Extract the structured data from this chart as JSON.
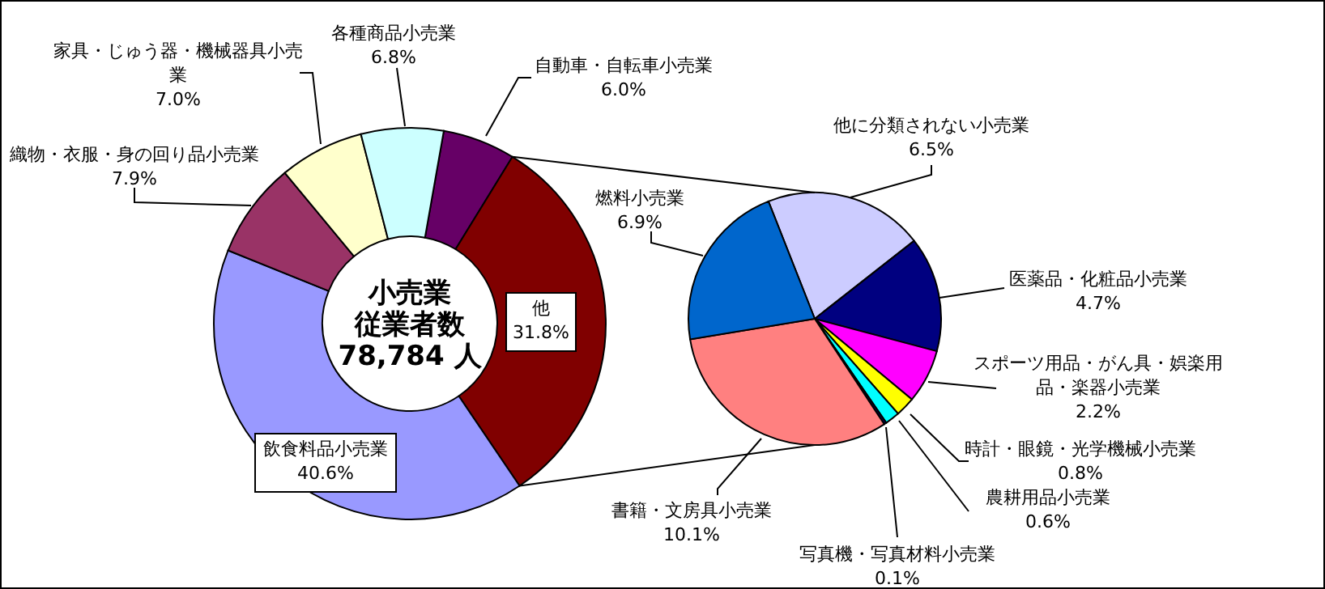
{
  "chart_data": [
    {
      "type": "donut",
      "title": "小売業",
      "subtitle": "従業者数",
      "annotations": [
        "78,784 人"
      ],
      "categories": [
        "自動車・自転車小売業",
        "他",
        "飲食料品小売業",
        "織物・衣服・身の回り品小売業",
        "家具・じゅう器・機械器具小売業",
        "各種商品小売業"
      ],
      "values": [
        6.0,
        31.8,
        40.6,
        7.9,
        7.0,
        6.8
      ],
      "value_labels": [
        "6.0%",
        "31.8%",
        "40.6%",
        "7.9%",
        "7.0%",
        "6.8%"
      ],
      "colors": [
        "#660066",
        "#800000",
        "#9999ff",
        "#993366",
        "#ffffcc",
        "#ccffff"
      ]
    },
    {
      "type": "pie",
      "categories": [
        "他に分類されない小売業",
        "医薬品・化粧品小売業",
        "スポーツ用品・がん具・娯楽用品・楽器小売業",
        "時計・眼鏡・光学機械小売業",
        "農耕用品小売業",
        "写真機・写真材料小売業",
        "書籍・文房具小売業",
        "燃料小売業"
      ],
      "values": [
        6.5,
        4.7,
        2.2,
        0.8,
        0.6,
        0.1,
        10.1,
        6.9
      ],
      "value_labels": [
        "6.5%",
        "4.7%",
        "2.2%",
        "0.8%",
        "0.6%",
        "0.1%",
        "10.1%",
        "6.9%"
      ],
      "colors": [
        "#ccccff",
        "#000080",
        "#ff00ff",
        "#ffff00",
        "#00ffff",
        "#000066",
        "#ff8080",
        "#0066cc"
      ]
    }
  ]
}
